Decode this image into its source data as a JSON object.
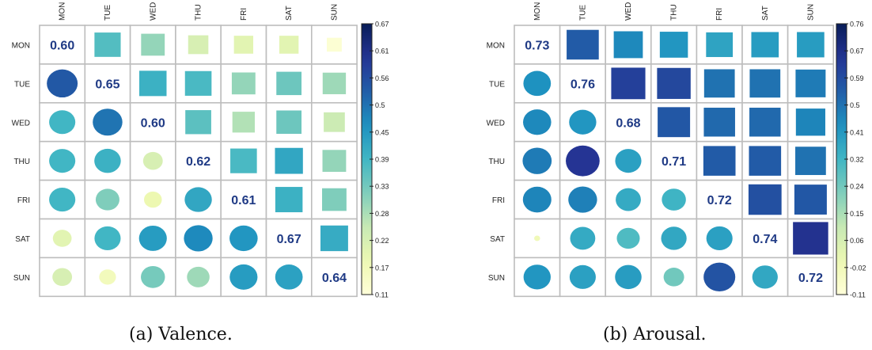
{
  "chart_data": [
    {
      "type": "heatmap",
      "caption": "(a) Valence.",
      "days": [
        "MON",
        "TUE",
        "WED",
        "THU",
        "FRI",
        "SAT",
        "SUN"
      ],
      "diagonal_labels": [
        "0.60",
        "0.65",
        "0.60",
        "0.62",
        "0.61",
        "0.67",
        "0.64"
      ],
      "upper_shape": "square",
      "lower_shape": "circle",
      "matrix": [
        [
          0.6,
          0.37,
          0.3,
          0.22,
          0.2,
          0.2,
          0.12
        ],
        [
          0.54,
          0.65,
          0.4,
          0.38,
          0.3,
          0.34,
          0.29
        ],
        [
          0.39,
          0.5,
          0.6,
          0.36,
          0.27,
          0.34,
          0.24
        ],
        [
          0.39,
          0.4,
          0.22,
          0.62,
          0.38,
          0.42,
          0.3
        ],
        [
          0.39,
          0.32,
          0.18,
          0.42,
          0.61,
          0.4,
          0.32
        ],
        [
          0.2,
          0.39,
          0.44,
          0.47,
          0.45,
          0.67,
          0.41
        ],
        [
          0.22,
          0.16,
          0.33,
          0.29,
          0.44,
          0.43,
          0.64
        ]
      ],
      "colorbar": {
        "min": 0.11,
        "max": 0.67,
        "ticks": [
          "0.67",
          "0.61",
          "0.56",
          "0.5",
          "0.45",
          "0.39",
          "0.33",
          "0.28",
          "0.22",
          "0.17",
          "0.11"
        ]
      }
    },
    {
      "type": "heatmap",
      "caption": "(b) Arousal.",
      "days": [
        "MON",
        "TUE",
        "WED",
        "THU",
        "FRI",
        "SAT",
        "SUN"
      ],
      "diagonal_labels": [
        "0.73",
        "0.76",
        "0.68",
        "0.71",
        "0.72",
        "0.74",
        "0.72"
      ],
      "upper_shape": "square",
      "lower_shape": "circle",
      "matrix": [
        [
          0.73,
          0.55,
          0.45,
          0.42,
          0.38,
          0.4,
          0.4
        ],
        [
          0.43,
          0.76,
          0.62,
          0.6,
          0.5,
          0.5,
          0.48
        ],
        [
          0.45,
          0.42,
          0.68,
          0.56,
          0.52,
          0.52,
          0.46
        ],
        [
          0.48,
          0.65,
          0.39,
          0.71,
          0.55,
          0.55,
          0.5
        ],
        [
          0.46,
          0.47,
          0.36,
          0.33,
          0.72,
          0.58,
          0.56
        ],
        [
          -0.02,
          0.36,
          0.3,
          0.37,
          0.39,
          0.74,
          0.66
        ],
        [
          0.42,
          0.39,
          0.4,
          0.24,
          0.57,
          0.37,
          0.72
        ]
      ],
      "colorbar": {
        "min": -0.11,
        "max": 0.76,
        "ticks": [
          "0.76",
          "0.67",
          "0.59",
          "0.5",
          "0.41",
          "0.32",
          "0.24",
          "0.15",
          "0.06",
          "-0.02",
          "-0.11"
        ]
      }
    }
  ]
}
